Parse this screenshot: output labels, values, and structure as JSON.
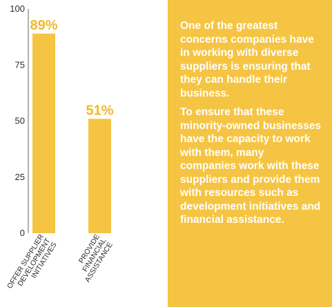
{
  "colors": {
    "bar": "#F5C442",
    "label": "#F2B82C",
    "panel": "#F5C442",
    "axis": "#666666"
  },
  "chart_data": {
    "type": "bar",
    "categories": [
      [
        "OFFER SUPPLIER",
        "DEVELOPMENT",
        "INITIATIVES"
      ],
      [
        "PROVIDE",
        "FINANCIAL",
        "ASSISTANCE"
      ]
    ],
    "values": [
      89,
      51
    ],
    "data_labels": [
      "89%",
      "51%"
    ],
    "yticks": [
      0,
      25,
      50,
      75,
      100
    ],
    "ylim": [
      0,
      100
    ],
    "grid": false
  },
  "panel": {
    "paragraphs": [
      "One of the greatest concerns companies have in working with diverse suppliers is ensuring that they can handle their business.",
      "To ensure that these minority-owned businesses have the capacity to work with them, many companies work with these suppliers and provide them with resources such as development initiatives and financial assistance."
    ]
  }
}
